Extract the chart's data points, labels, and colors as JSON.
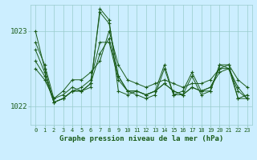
{
  "title": "Graphe pression niveau de la mer (hPa)",
  "bg_color": "#cceeff",
  "line_color": "#1a5c1a",
  "grid_color": "#99cccc",
  "yticks": [
    1022,
    1023
  ],
  "ylim": [
    1021.75,
    1023.35
  ],
  "xlim": [
    -0.5,
    23.5
  ],
  "hours": [
    0,
    1,
    2,
    3,
    4,
    5,
    6,
    7,
    8,
    9,
    10,
    11,
    12,
    13,
    14,
    15,
    16,
    17,
    18,
    19,
    20,
    21,
    22,
    23
  ],
  "series": [
    [
      1022.85,
      1022.55,
      1022.1,
      1022.15,
      1022.25,
      1022.2,
      1022.25,
      1023.3,
      1023.15,
      1022.2,
      1022.15,
      1022.2,
      1022.15,
      1022.2,
      1022.55,
      1022.15,
      1022.2,
      1022.45,
      1022.2,
      1022.2,
      1022.55,
      1022.55,
      1022.1,
      1022.15
    ],
    [
      1022.5,
      1022.35,
      1022.1,
      1022.2,
      1022.35,
      1022.35,
      1022.45,
      1022.6,
      1023.0,
      1022.55,
      1022.35,
      1022.3,
      1022.25,
      1022.3,
      1022.35,
      1022.3,
      1022.25,
      1022.3,
      1022.3,
      1022.35,
      1022.5,
      1022.55,
      1022.35,
      1022.25
    ],
    [
      1022.6,
      1022.4,
      1022.05,
      1022.1,
      1022.2,
      1022.25,
      1022.35,
      1022.85,
      1022.85,
      1022.35,
      1022.2,
      1022.2,
      1022.15,
      1022.2,
      1022.3,
      1022.2,
      1022.15,
      1022.25,
      1022.2,
      1022.25,
      1022.45,
      1022.5,
      1022.25,
      1022.1
    ],
    [
      1022.75,
      1022.45,
      1022.05,
      1022.1,
      1022.2,
      1022.2,
      1022.3,
      1022.7,
      1022.9,
      1022.4,
      1022.2,
      1022.2,
      1022.15,
      1022.2,
      1022.3,
      1022.2,
      1022.15,
      1022.25,
      1022.2,
      1022.25,
      1022.5,
      1022.5,
      1022.2,
      1022.1
    ],
    [
      1023.0,
      1022.5,
      1022.05,
      1022.1,
      1022.2,
      1022.2,
      1022.3,
      1023.25,
      1023.1,
      1022.4,
      1022.2,
      1022.15,
      1022.1,
      1022.15,
      1022.5,
      1022.15,
      1022.15,
      1022.4,
      1022.15,
      1022.2,
      1022.55,
      1022.5,
      1022.1,
      1022.1
    ]
  ],
  "marker": "+",
  "markersize": 3,
  "linewidth": 0.7,
  "xlabel_fontsize": 6.5,
  "ytick_fontsize": 6.5,
  "xtick_fontsize": 5
}
